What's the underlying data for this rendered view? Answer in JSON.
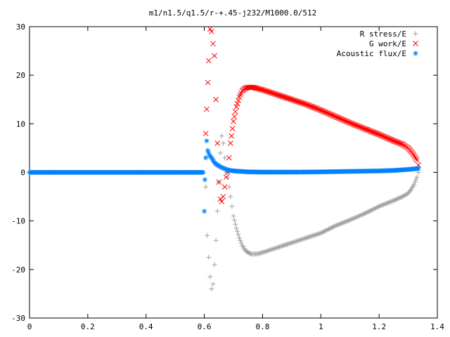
{
  "chart_data": {
    "type": "scatter",
    "title": "m1/n1.5/q1.5/r-+.45-j232/M1000.0/512",
    "xlabel": "",
    "ylabel": "",
    "xlim": [
      0,
      1.4
    ],
    "ylim": [
      -30,
      30
    ],
    "xticks": [
      0,
      0.2,
      0.4,
      0.6,
      0.8,
      1,
      1.2,
      1.4
    ],
    "xtick_labels": [
      "0",
      "0.2",
      "0.4",
      "0.6",
      "0.8",
      "1",
      "1.2",
      "1.4"
    ],
    "yticks": [
      -30,
      -20,
      -10,
      0,
      10,
      20,
      30
    ],
    "ytick_labels": [
      "-30",
      "-20",
      "-10",
      "0",
      "10",
      "20",
      "30"
    ],
    "grid": false,
    "legend_position": "top-right",
    "series": [
      {
        "name": "R stress/E",
        "marker": "plus",
        "color": "#a0a0a0",
        "x": [
          0.605,
          0.61,
          0.615,
          0.62,
          0.625,
          0.63,
          0.635,
          0.64,
          0.645,
          0.65,
          0.655,
          0.66,
          0.665,
          0.67,
          0.675,
          0.68,
          0.685,
          0.69,
          0.695,
          0.7,
          0.71,
          0.72,
          0.73,
          0.74,
          0.75,
          0.76,
          0.78,
          0.8,
          0.85,
          0.9,
          0.95,
          1.0,
          1.05,
          1.1,
          1.15,
          1.2,
          1.25,
          1.28,
          1.3,
          1.31,
          1.32,
          1.33,
          1.335
        ],
        "y": [
          -3,
          -13,
          -17.5,
          -21.5,
          -24,
          -23,
          -19,
          -14,
          -8,
          -2,
          4,
          7.5,
          6,
          3,
          0,
          -1,
          -3,
          -5,
          -7,
          -9,
          -11.5,
          -13.5,
          -15,
          -16,
          -16.5,
          -16.8,
          -16.8,
          -16.5,
          -15.5,
          -14.5,
          -13.5,
          -12.5,
          -11,
          -9.8,
          -8.5,
          -7,
          -5.8,
          -5,
          -4.3,
          -3.5,
          -2.5,
          -1,
          0
        ]
      },
      {
        "name": "G work/E",
        "marker": "cross",
        "color": "#ff0000",
        "x": [
          0.605,
          0.608,
          0.612,
          0.615,
          0.62,
          0.625,
          0.63,
          0.635,
          0.64,
          0.645,
          0.65,
          0.655,
          0.66,
          0.665,
          0.67,
          0.675,
          0.68,
          0.685,
          0.69,
          0.7,
          0.71,
          0.72,
          0.73,
          0.74,
          0.75,
          0.76,
          0.77,
          0.78,
          0.8,
          0.85,
          0.9,
          0.95,
          1.0,
          1.05,
          1.1,
          1.15,
          1.2,
          1.25,
          1.28,
          1.3,
          1.31,
          1.32,
          1.33,
          1.335
        ],
        "y": [
          8,
          13,
          18.5,
          23,
          29.5,
          29,
          26.5,
          24,
          15,
          6,
          -2,
          -5.5,
          -6,
          -5,
          -3,
          -1,
          0,
          3,
          6,
          10.5,
          13.5,
          15.5,
          16.8,
          17.3,
          17.5,
          17.5,
          17.5,
          17.3,
          17,
          16,
          15,
          14,
          12.8,
          11.5,
          10.2,
          9,
          7.8,
          6.5,
          5.8,
          5,
          4.3,
          3.5,
          2.5,
          1.5
        ]
      },
      {
        "name": "Acoustic flux/E",
        "marker": "star",
        "color": "#0080ff",
        "x": [
          0.6,
          0.602,
          0.605,
          0.608,
          0.612,
          0.618,
          0.625,
          0.635,
          0.645,
          0.66,
          0.68,
          0.7,
          0.75,
          0.8,
          0.9,
          1.0,
          1.1,
          1.2,
          1.25,
          1.3,
          1.335
        ],
        "y": [
          -8,
          -1.5,
          3,
          6.5,
          4.5,
          3.5,
          3,
          2,
          1.5,
          1,
          0.5,
          0.3,
          0.1,
          0.05,
          0.05,
          0.1,
          0.2,
          0.3,
          0.4,
          0.6,
          0.8
        ],
        "baseline": {
          "x_start": 0,
          "x_end": 0.6,
          "y": 0
        }
      }
    ]
  }
}
